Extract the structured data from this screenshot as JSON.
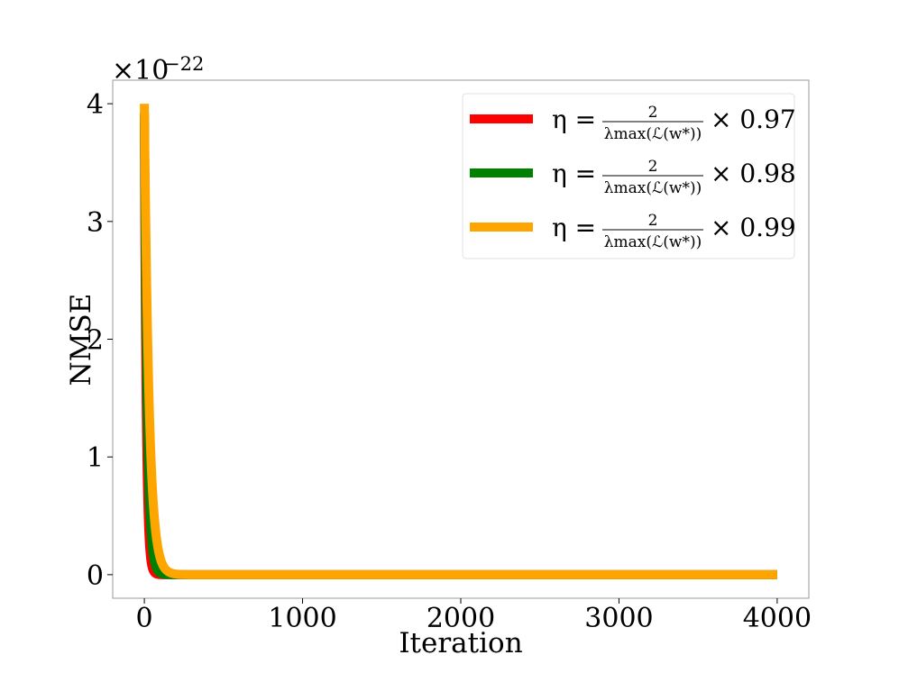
{
  "chart_data": {
    "type": "line",
    "xlabel": "Iteration",
    "ylabel": "NMSE",
    "y_scale_label": "×10",
    "y_scale_exponent": "−22",
    "xlim": [
      -200,
      4200
    ],
    "ylim": [
      -0.2,
      4.2
    ],
    "x_ticks": [
      0,
      1000,
      2000,
      3000,
      4000
    ],
    "y_ticks": [
      0,
      1,
      2,
      3,
      4
    ],
    "grid": false,
    "legend_placement": "top-right",
    "series": [
      {
        "legend_prefix": "η =",
        "frac_num": "2",
        "frac_den": "λmax(ℒ(w*))",
        "legend_suffix": "× 0.97",
        "color": "#ff0000",
        "start": 3.9,
        "decay_tau": 12,
        "x_end": 4000
      },
      {
        "legend_prefix": "η =",
        "frac_num": "2",
        "frac_den": "λmax(ℒ(w*))",
        "legend_suffix": "× 0.98",
        "color": "#008000",
        "start": 3.92,
        "decay_tau": 18,
        "x_end": 4000
      },
      {
        "legend_prefix": "η =",
        "frac_num": "2",
        "frac_den": "λmax(ℒ(w*))",
        "legend_suffix": "× 0.99",
        "color": "#ffa500",
        "start": 4.0,
        "decay_tau": 30,
        "x_end": 4000
      }
    ]
  }
}
